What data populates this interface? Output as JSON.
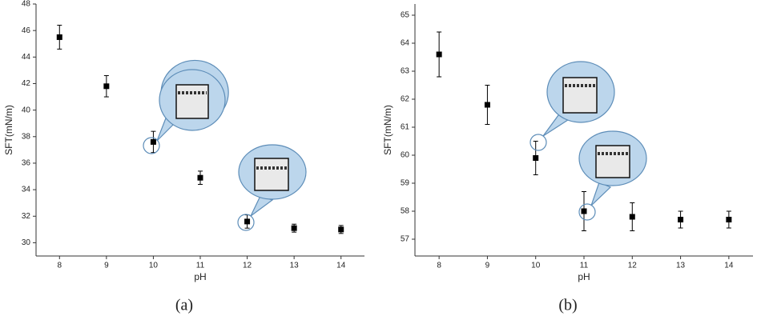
{
  "chart_data": [
    {
      "type": "scatter",
      "label": "(a)",
      "x_label": "pH",
      "y_label": "SFT(mN/m)",
      "x": [
        8,
        9,
        10,
        11,
        12,
        13,
        14
      ],
      "values": [
        45.5,
        41.8,
        37.6,
        34.9,
        31.6,
        31.1,
        31.0
      ],
      "errors": [
        0.9,
        0.8,
        0.8,
        0.5,
        0.5,
        0.3,
        0.3
      ],
      "xlim": [
        7.5,
        14.5
      ],
      "ylim": [
        29,
        48
      ],
      "xticks": [
        8,
        9,
        10,
        11,
        12,
        13,
        14
      ],
      "yticks": [
        30,
        32,
        34,
        36,
        38,
        40,
        42,
        44,
        46,
        48
      ],
      "color": "#000000"
    },
    {
      "type": "scatter",
      "label": "(b)",
      "x_label": "pH",
      "y_label": "SFT(mN/m)",
      "x": [
        8,
        9,
        10,
        11,
        12,
        13,
        14
      ],
      "values": [
        63.6,
        61.8,
        59.9,
        58.0,
        57.8,
        57.7,
        57.7
      ],
      "errors": [
        0.8,
        0.7,
        0.6,
        0.7,
        0.5,
        0.3,
        0.3
      ],
      "xlim": [
        7.5,
        14.5
      ],
      "ylim": [
        56.4,
        65.4
      ],
      "xticks": [
        8,
        9,
        10,
        11,
        12,
        13,
        14
      ],
      "yticks": [
        57,
        58,
        59,
        60,
        61,
        62,
        63,
        64,
        65
      ],
      "color": "#000000"
    }
  ]
}
